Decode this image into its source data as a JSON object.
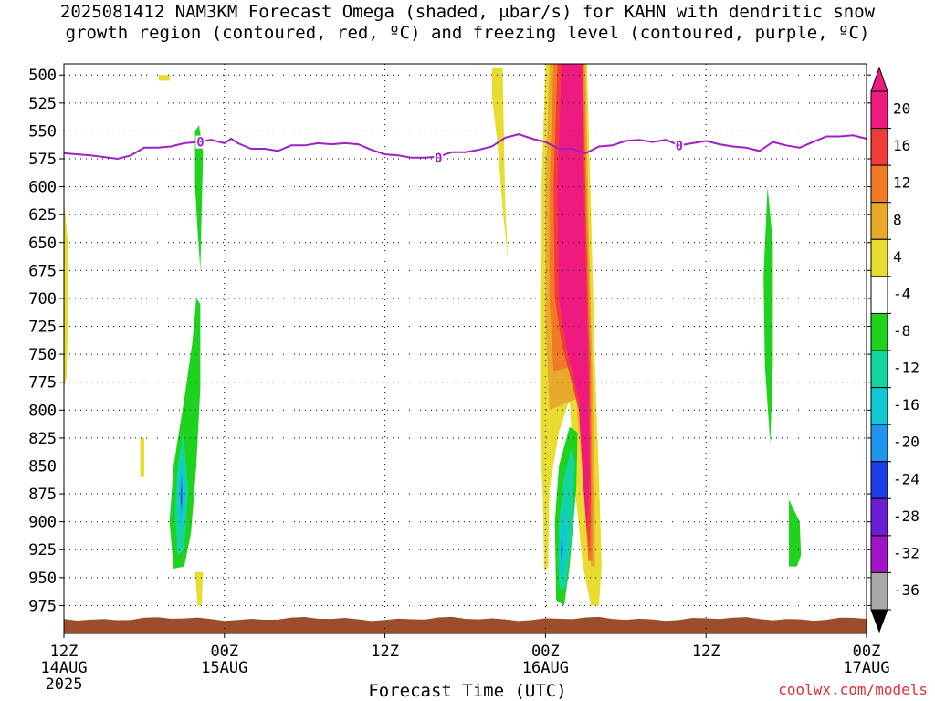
{
  "title": {
    "line1": "2025081412 NAM3KM Forecast Omega (shaded, μbar/s) for KAHN with dendritic snow",
    "line2": "growth region (contoured, red, ºC) and freezing level (contoured, purple, ºC)"
  },
  "credit": "coolwx.com/models",
  "chart_data": {
    "type": "heatmap",
    "title": "2025081412 NAM3KM Forecast Omega (shaded, μbar/s) for KAHN with dendritic snow growth region (contoured, red, ºC) and freezing level (contoured, purple, ºC)",
    "xlabel": "Forecast Time (UTC)",
    "ylabel": "",
    "x_range_hours": [
      0,
      60
    ],
    "ylim": [
      1000,
      490
    ],
    "y_ticks": [
      500,
      525,
      550,
      575,
      600,
      625,
      650,
      675,
      700,
      725,
      750,
      775,
      800,
      825,
      850,
      875,
      900,
      925,
      950,
      975
    ],
    "x_ticks": [
      {
        "hour": 0,
        "label": "12Z",
        "sub": "14AUG",
        "sub2": "2025"
      },
      {
        "hour": 12,
        "label": "00Z",
        "sub": "15AUG",
        "sub2": ""
      },
      {
        "hour": 24,
        "label": "12Z",
        "sub": "",
        "sub2": ""
      },
      {
        "hour": 36,
        "label": "00Z",
        "sub": "16AUG",
        "sub2": ""
      },
      {
        "hour": 48,
        "label": "12Z",
        "sub": "",
        "sub2": ""
      },
      {
        "hour": 60,
        "label": "00Z",
        "sub": "17AUG",
        "sub2": ""
      }
    ],
    "grid": true,
    "colorbar": {
      "labels": [
        "20",
        "16",
        "12",
        "8",
        "4",
        "-4",
        "-8",
        "-12",
        "-16",
        "-20",
        "-24",
        "-28",
        "-32",
        "-36"
      ],
      "bins": [
        {
          "color": "#ee1a80"
        },
        {
          "color": "#f23c3c"
        },
        {
          "color": "#f07a28"
        },
        {
          "color": "#e9aa2c"
        },
        {
          "color": "#e8dc30"
        },
        {
          "color": "#ffffff"
        },
        {
          "color": "#1ed21e"
        },
        {
          "color": "#14d4a0"
        },
        {
          "color": "#12c8d2"
        },
        {
          "color": "#1e96ee"
        },
        {
          "color": "#1e3ce6"
        },
        {
          "color": "#6a1ed2"
        },
        {
          "color": "#a014c8"
        },
        {
          "color": "#a8a8a8"
        }
      ],
      "top_color": "#ee1a80",
      "bottom_color": "#000000"
    },
    "freezing_level": {
      "color": "#a020c8",
      "label": "0",
      "points": [
        [
          0,
          570
        ],
        [
          2,
          572
        ],
        [
          4,
          575
        ],
        [
          5,
          572
        ],
        [
          6,
          565
        ],
        [
          7,
          565
        ],
        [
          8,
          564
        ],
        [
          9,
          561
        ],
        [
          10,
          560
        ],
        [
          11,
          558
        ],
        [
          12,
          561
        ],
        [
          12.5,
          557
        ],
        [
          13,
          561
        ],
        [
          14,
          566
        ],
        [
          15,
          566
        ],
        [
          16,
          568
        ],
        [
          17,
          563
        ],
        [
          18,
          563
        ],
        [
          19,
          561
        ],
        [
          20,
          562
        ],
        [
          21,
          561
        ],
        [
          22,
          562
        ],
        [
          23,
          567
        ],
        [
          24,
          571
        ],
        [
          25,
          572
        ],
        [
          26,
          574
        ],
        [
          27,
          574
        ],
        [
          28,
          573
        ],
        [
          29,
          569
        ],
        [
          30,
          569
        ],
        [
          31,
          567
        ],
        [
          32,
          564
        ],
        [
          33,
          556
        ],
        [
          34,
          553
        ],
        [
          35,
          557
        ],
        [
          36,
          560
        ],
        [
          37,
          566
        ],
        [
          38,
          566
        ],
        [
          39,
          570
        ],
        [
          40,
          564
        ],
        [
          41,
          563
        ],
        [
          42,
          559
        ],
        [
          43,
          558
        ],
        [
          44,
          560
        ],
        [
          45,
          558
        ],
        [
          46,
          563
        ],
        [
          47,
          561
        ],
        [
          48,
          559
        ],
        [
          49,
          562
        ],
        [
          50,
          564
        ],
        [
          51,
          565
        ],
        [
          52,
          568
        ],
        [
          53,
          560
        ],
        [
          54,
          563
        ],
        [
          55,
          565
        ],
        [
          56,
          560
        ],
        [
          57,
          555
        ],
        [
          58,
          555
        ],
        [
          59,
          554
        ],
        [
          60,
          557
        ]
      ],
      "label_positions": [
        [
          10.2,
          560
        ],
        [
          28.0,
          574
        ],
        [
          46.0,
          563
        ]
      ]
    },
    "shaded_regions": [
      {
        "value": "4-8",
        "color": "#e8dc30",
        "pts": [
          [
            7.1,
            500
          ],
          [
            7.9,
            500
          ],
          [
            7.9,
            505
          ],
          [
            7.1,
            505
          ]
        ]
      },
      {
        "value": "4-8",
        "color": "#e8dc30",
        "pts": [
          [
            0,
            612
          ],
          [
            0.3,
            650
          ],
          [
            0.3,
            720
          ],
          [
            0.2,
            770
          ],
          [
            0,
            780
          ]
        ]
      },
      {
        "value": "4-8",
        "color": "#e8dc30",
        "pts": [
          [
            5.7,
            825
          ],
          [
            6.0,
            825
          ],
          [
            6.0,
            860
          ],
          [
            5.7,
            860
          ]
        ]
      },
      {
        "value": "4-8",
        "color": "#e8dc30",
        "pts": [
          [
            9.8,
            945
          ],
          [
            10.4,
            945
          ],
          [
            10.3,
            975
          ],
          [
            10.0,
            975
          ]
        ]
      },
      {
        "value": "4-8",
        "color": "#e8dc30",
        "pts": [
          [
            32.0,
            493
          ],
          [
            32.8,
            493
          ],
          [
            32.9,
            560
          ],
          [
            33.0,
            620
          ],
          [
            33.2,
            665
          ],
          [
            32.8,
            620
          ],
          [
            32.4,
            560
          ],
          [
            32.0,
            520
          ]
        ]
      },
      {
        "value": "-4--8",
        "color": "#1ed21e",
        "pts": [
          [
            9.8,
            550
          ],
          [
            10.1,
            545
          ],
          [
            10.4,
            570
          ],
          [
            10.3,
            620
          ],
          [
            10.2,
            675
          ],
          [
            10.0,
            640
          ],
          [
            9.8,
            600
          ]
        ]
      },
      {
        "value": "-4--8",
        "color": "#1ed21e",
        "pts": [
          [
            9.9,
            700
          ],
          [
            10.2,
            705
          ],
          [
            10.2,
            780
          ],
          [
            9.9,
            850
          ],
          [
            9.5,
            910
          ],
          [
            9.0,
            940
          ],
          [
            8.2,
            942
          ],
          [
            7.9,
            900
          ],
          [
            8.2,
            850
          ],
          [
            9.0,
            790
          ],
          [
            9.6,
            740
          ]
        ]
      },
      {
        "value": "-4--8",
        "color": "#1ed21e",
        "pts": [
          [
            52.6,
            600
          ],
          [
            53.0,
            650
          ],
          [
            53.0,
            760
          ],
          [
            52.8,
            830
          ],
          [
            52.4,
            760
          ],
          [
            52.3,
            680
          ]
        ]
      },
      {
        "value": "-4--8",
        "color": "#1ed21e",
        "pts": [
          [
            54.2,
            880
          ],
          [
            55.0,
            900
          ],
          [
            55.1,
            930
          ],
          [
            54.8,
            940
          ],
          [
            54.2,
            940
          ],
          [
            54.2,
            920
          ]
        ]
      },
      {
        "value": "-8--12",
        "color": "#14d4a0",
        "pts": [
          [
            8.9,
            820
          ],
          [
            9.3,
            870
          ],
          [
            9.0,
            925
          ],
          [
            8.5,
            930
          ],
          [
            8.3,
            890
          ],
          [
            8.5,
            850
          ]
        ]
      },
      {
        "value": "-12--16",
        "color": "#12c8d2",
        "pts": [
          [
            8.9,
            840
          ],
          [
            9.1,
            870
          ],
          [
            8.9,
            905
          ],
          [
            8.6,
            900
          ],
          [
            8.6,
            860
          ]
        ]
      },
      {
        "value": "-16--20",
        "color": "#1e96ee",
        "pts": [
          [
            8.8,
            855
          ],
          [
            8.9,
            875
          ],
          [
            8.8,
            895
          ],
          [
            8.7,
            875
          ]
        ]
      },
      {
        "value": "-20--24",
        "color": "#1e3ce6",
        "pts": [
          [
            8.77,
            862
          ],
          [
            8.82,
            880
          ],
          [
            8.77,
            890
          ],
          [
            8.72,
            878
          ]
        ]
      },
      {
        "value": "4-8",
        "color": "#e8dc30",
        "pts": [
          [
            36.0,
            490
          ],
          [
            39.1,
            490
          ],
          [
            39.4,
            620
          ],
          [
            39.7,
            760
          ],
          [
            40.0,
            860
          ],
          [
            40.2,
            940
          ],
          [
            40.0,
            975
          ],
          [
            39.4,
            975
          ],
          [
            38.8,
            940
          ],
          [
            38.2,
            870
          ],
          [
            37.8,
            790
          ],
          [
            37.0,
            820
          ],
          [
            36.3,
            870
          ],
          [
            36.2,
            940
          ],
          [
            35.9,
            945
          ],
          [
            35.8,
            880
          ],
          [
            35.6,
            820
          ],
          [
            35.6,
            700
          ],
          [
            35.7,
            600
          ]
        ]
      },
      {
        "value": "8-12",
        "color": "#e9aa2c",
        "pts": [
          [
            36.3,
            490
          ],
          [
            39.0,
            490
          ],
          [
            39.2,
            620
          ],
          [
            39.5,
            760
          ],
          [
            39.7,
            880
          ],
          [
            39.7,
            940
          ],
          [
            39.4,
            940
          ],
          [
            38.9,
            880
          ],
          [
            38.3,
            790
          ],
          [
            36.3,
            800
          ],
          [
            36.0,
            720
          ],
          [
            36.0,
            600
          ]
        ]
      },
      {
        "value": "12-16",
        "color": "#f07a28",
        "pts": [
          [
            36.6,
            490
          ],
          [
            38.9,
            490
          ],
          [
            39.1,
            620
          ],
          [
            39.4,
            760
          ],
          [
            39.5,
            880
          ],
          [
            39.5,
            935
          ],
          [
            39.2,
            935
          ],
          [
            38.8,
            860
          ],
          [
            38.3,
            760
          ],
          [
            36.6,
            765
          ],
          [
            36.3,
            700
          ],
          [
            36.3,
            600
          ]
        ]
      },
      {
        "value": "16-20",
        "color": "#f23c3c",
        "pts": [
          [
            36.9,
            490
          ],
          [
            38.8,
            490
          ],
          [
            39.0,
            620
          ],
          [
            39.3,
            760
          ],
          [
            39.4,
            880
          ],
          [
            39.3,
            930
          ],
          [
            38.9,
            880
          ],
          [
            38.5,
            800
          ],
          [
            37.2,
            740
          ],
          [
            36.7,
            700
          ],
          [
            36.6,
            600
          ]
        ]
      },
      {
        "value": ">20",
        "color": "#ee1a80",
        "pts": [
          [
            37.2,
            490
          ],
          [
            38.7,
            490
          ],
          [
            38.9,
            620
          ],
          [
            39.2,
            760
          ],
          [
            39.3,
            860
          ],
          [
            39.1,
            910
          ],
          [
            38.8,
            860
          ],
          [
            38.5,
            790
          ],
          [
            37.5,
            740
          ],
          [
            37.0,
            700
          ],
          [
            36.9,
            600
          ]
        ]
      },
      {
        "value": "0-4",
        "color": "#ffffff",
        "pts": [
          [
            37.2,
            810
          ],
          [
            38.2,
            825
          ],
          [
            38.3,
            860
          ],
          [
            37.7,
            880
          ],
          [
            37.0,
            860
          ],
          [
            37.0,
            830
          ]
        ]
      },
      {
        "value": "-4--8",
        "color": "#1ed21e",
        "pts": [
          [
            37.8,
            815
          ],
          [
            38.4,
            820
          ],
          [
            38.3,
            870
          ],
          [
            37.8,
            940
          ],
          [
            37.4,
            975
          ],
          [
            36.8,
            970
          ],
          [
            36.7,
            900
          ],
          [
            37.0,
            850
          ]
        ]
      },
      {
        "value": "-8--12",
        "color": "#14d4a0",
        "pts": [
          [
            37.9,
            835
          ],
          [
            38.2,
            845
          ],
          [
            38.0,
            910
          ],
          [
            37.5,
            960
          ],
          [
            37.0,
            960
          ],
          [
            37.0,
            900
          ],
          [
            37.4,
            860
          ]
        ]
      },
      {
        "value": "-12--16",
        "color": "#12c8d2",
        "pts": [
          [
            37.5,
            880
          ],
          [
            37.6,
            920
          ],
          [
            37.3,
            950
          ],
          [
            37.0,
            945
          ],
          [
            37.1,
            905
          ]
        ]
      },
      {
        "value": "-16--20",
        "color": "#1e96ee",
        "pts": [
          [
            37.25,
            905
          ],
          [
            37.3,
            925
          ],
          [
            37.2,
            940
          ],
          [
            37.15,
            925
          ]
        ]
      },
      {
        "value": "-20--24",
        "color": "#1e3ce6",
        "pts": [
          [
            37.21,
            915
          ],
          [
            37.24,
            930
          ],
          [
            37.2,
            935
          ],
          [
            37.18,
            925
          ]
        ]
      }
    ],
    "terrain": {
      "color": "#9c4e2c",
      "top_hPa": 987
    }
  }
}
